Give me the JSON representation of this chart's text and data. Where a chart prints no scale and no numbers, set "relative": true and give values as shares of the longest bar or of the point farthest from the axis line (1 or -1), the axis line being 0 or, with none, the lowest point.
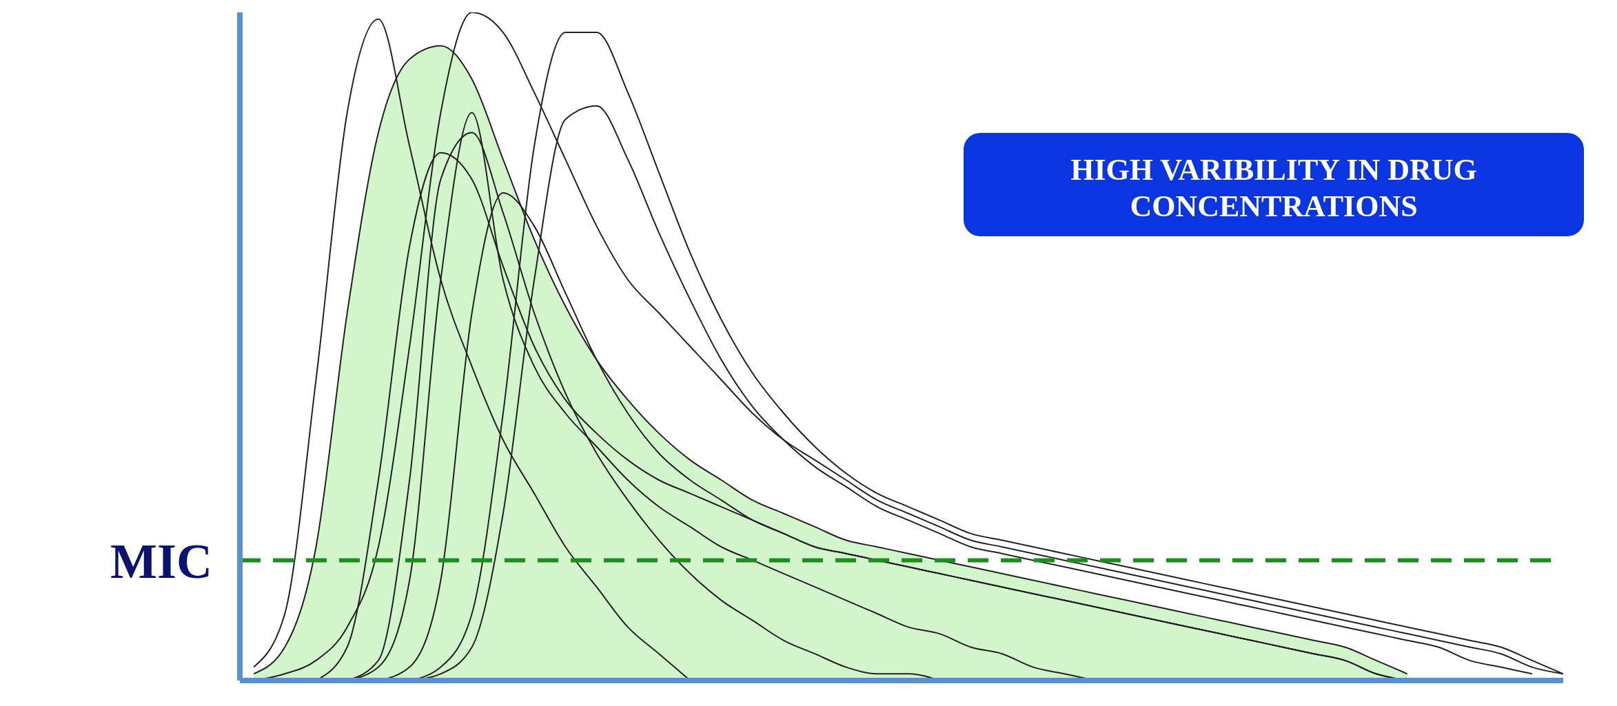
{
  "chart_data": {
    "type": "line",
    "relative": true,
    "marker": "none",
    "line_style": "solid",
    "categories": [
      null,
      null,
      null,
      null,
      null,
      null,
      null,
      null,
      null,
      null,
      null,
      null,
      null,
      null,
      null,
      null,
      null,
      null,
      null,
      null,
      null,
      null,
      null,
      null,
      null,
      null,
      null,
      null,
      null,
      null,
      null,
      null,
      null,
      null,
      null,
      null,
      null,
      null,
      null,
      null,
      null,
      null,
      null
    ],
    "series": [
      {
        "type": "area",
        "color": "#d2f5cc",
        "values": [
          0.01,
          0.05,
          0.2,
          0.55,
          0.82,
          0.93,
          0.95,
          0.9,
          0.78,
          0.66,
          0.56,
          0.48,
          0.42,
          0.37,
          0.33,
          0.3,
          0.27,
          0.25,
          0.23,
          0.21,
          0.2,
          0.19,
          0.18,
          0.17,
          0.16,
          0.15,
          0.14,
          0.13,
          0.12,
          0.11,
          0.1,
          0.09,
          0.08,
          0.07,
          0.06,
          0.05,
          0.03,
          0.01,
          null,
          null,
          null,
          null,
          null
        ]
      },
      {
        "color": "#222222",
        "values": [
          0.02,
          0.1,
          0.45,
          0.85,
          0.99,
          0.8,
          0.6,
          0.47,
          0.36,
          0.28,
          0.2,
          0.14,
          0.08,
          0.04,
          0,
          null,
          null,
          null,
          null,
          null,
          null,
          null,
          null,
          null,
          null,
          null,
          null,
          null,
          null,
          null,
          null,
          null,
          null,
          null,
          null,
          null,
          null,
          null,
          null,
          null,
          null,
          null,
          null
        ]
      },
      {
        "color": "#222222",
        "values": [
          0,
          0.01,
          0.03,
          0.08,
          0.2,
          0.5,
          0.85,
          1,
          0.97,
          0.88,
          0.78,
          0.68,
          0.6,
          0.55,
          0.5,
          0.45,
          0.4,
          0.36,
          0.33,
          0.3,
          0.27,
          0.25,
          0.23,
          0.21,
          0.2,
          0.19,
          0.18,
          0.17,
          0.16,
          0.15,
          0.14,
          0.13,
          0.12,
          0.11,
          0.1,
          0.09,
          0.08,
          0.07,
          0.06,
          0.05,
          0.04,
          0.02,
          0.01
        ]
      },
      {
        "color": "#222222",
        "values": [
          null,
          null,
          null,
          null,
          null,
          0,
          0.02,
          0.1,
          0.4,
          0.8,
          0.97,
          0.97,
          0.88,
          0.76,
          0.64,
          0.54,
          0.46,
          0.4,
          0.35,
          0.31,
          0.28,
          0.26,
          0.24,
          0.22,
          0.21,
          0.2,
          0.19,
          0.18,
          0.17,
          0.16,
          0.15,
          0.14,
          0.13,
          0.12,
          0.11,
          0.1,
          0.09,
          0.08,
          0.07,
          0.06,
          0.05,
          0.03,
          0.01
        ]
      },
      {
        "color": "#222222",
        "values": [
          null,
          null,
          null,
          null,
          null,
          0,
          0.01,
          0.05,
          0.25,
          0.6,
          0.84,
          0.86,
          0.78,
          0.67,
          0.57,
          0.48,
          0.41,
          0.36,
          0.32,
          0.29,
          0.26,
          0.24,
          0.22,
          0.2,
          0.19,
          0.18,
          0.17,
          0.16,
          0.15,
          0.14,
          0.13,
          0.12,
          0.11,
          0.1,
          0.09,
          0.08,
          0.07,
          0.06,
          0.05,
          0.03,
          0.02,
          0.01,
          null
        ]
      },
      {
        "color": "#222222",
        "values": [
          null,
          null,
          null,
          0,
          0.02,
          0.15,
          0.6,
          0.85,
          0.6,
          0.47,
          0.4,
          0.35,
          0.3,
          0.26,
          0.23,
          0.2,
          0.18,
          0.16,
          0.14,
          0.12,
          0.1,
          0.08,
          0.07,
          0.05,
          0.04,
          0.02,
          0.01,
          0,
          null,
          null,
          null,
          null,
          null,
          null,
          null,
          null,
          null,
          null,
          null,
          null,
          null,
          null,
          null
        ]
      },
      {
        "color": "#222222",
        "values": [
          null,
          null,
          null,
          0,
          0.03,
          0.3,
          0.75,
          0.82,
          0.7,
          0.55,
          0.43,
          0.34,
          0.27,
          0.21,
          0.16,
          0.12,
          0.09,
          0.06,
          0.04,
          0.02,
          0.01,
          0.01,
          0,
          null,
          null,
          null,
          null,
          null,
          null,
          null,
          null,
          null,
          null,
          null,
          null,
          null,
          null,
          null,
          null,
          null,
          null,
          null,
          null
        ]
      },
      {
        "color": "#222222",
        "values": [
          null,
          null,
          0,
          0.05,
          0.3,
          0.65,
          0.79,
          0.75,
          0.62,
          0.5,
          0.42,
          0.37,
          0.33,
          0.3,
          0.28,
          0.26,
          0.24,
          0.22,
          0.2,
          0.19,
          0.18,
          0.17,
          0.16,
          0.15,
          0.14,
          0.13,
          0.12,
          0.11,
          0.1,
          0.09,
          0.08,
          0.07,
          0.06,
          0.05,
          0.04,
          0.03,
          0.01,
          0,
          null,
          null,
          null,
          null,
          null
        ]
      },
      {
        "color": "#222222",
        "values": [
          null,
          null,
          null,
          null,
          0,
          0.02,
          0.15,
          0.55,
          0.73,
          0.68,
          0.58,
          0.48,
          0.4,
          0.34,
          0.3,
          0.27,
          0.24,
          0.22,
          0.2,
          0.19,
          0.18,
          0.17,
          0.16,
          0.15,
          0.14,
          0.13,
          0.12,
          0.11,
          0.1,
          0.09,
          0.08,
          0.07,
          0.06,
          0.05,
          0.04,
          0.03,
          0.01,
          0,
          null,
          null,
          null,
          null,
          null
        ]
      }
    ],
    "ref_lines": [
      {
        "axis": "y",
        "value": 0.18,
        "label": "MIC",
        "color": "#1e8c1e",
        "line_style": "dashed"
      }
    ],
    "annotations": [
      "HIGH VARIBILITY IN DRUG CONCENTRATIONS"
    ]
  }
}
